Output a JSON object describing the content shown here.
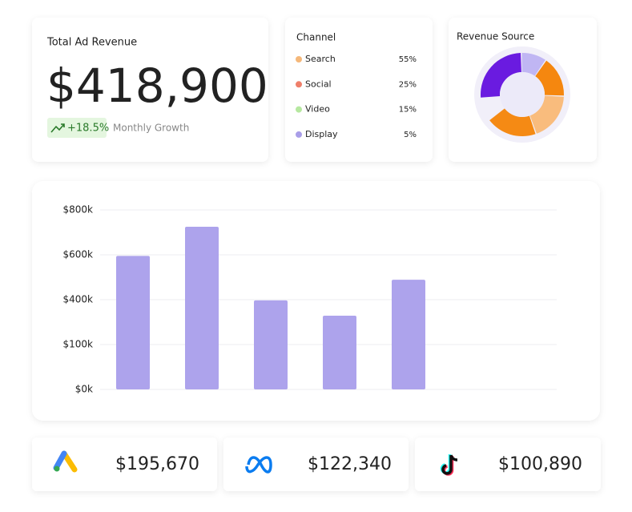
{
  "total_revenue": {
    "title": "Total Ad Revenue",
    "value": "$418,900",
    "growth": "+18.5%",
    "growth_label": "Monthly Growth"
  },
  "channels": {
    "title": "Channel",
    "items": [
      {
        "name": "Search",
        "share": "55%",
        "color": "#f5b87a"
      },
      {
        "name": "Social",
        "share": "25%",
        "color": "#ef7f6a"
      },
      {
        "name": "Video",
        "share": "15%",
        "color": "#b6e8a0"
      },
      {
        "name": "Display",
        "share": "5%",
        "color": "#a99ee8"
      }
    ]
  },
  "chart_data": [
    {
      "type": "pie",
      "title": "Revenue Source",
      "values": [
        26,
        10,
        16,
        19,
        20
      ],
      "colors": [
        "#6a1be0",
        "#c0b6f3",
        "#f5870f",
        "#f9bc7d",
        "#f58a14"
      ]
    },
    {
      "type": "bar",
      "values": [
        595,
        725,
        395,
        293,
        489
      ],
      "color": "#ada3ec",
      "ylim": [
        0,
        800
      ],
      "yticks": [
        {
          "value": 0,
          "label": "$0k"
        },
        {
          "value": 100,
          "label": "$100k"
        },
        {
          "value": 400,
          "label": "$400k"
        },
        {
          "value": 600,
          "label": "$600k"
        },
        {
          "value": 800,
          "label": "$800k"
        }
      ],
      "grid": true
    }
  ],
  "platforms": [
    {
      "amount": "$195,670"
    },
    {
      "amount": "$122,340"
    },
    {
      "amount": "$100,890"
    }
  ]
}
